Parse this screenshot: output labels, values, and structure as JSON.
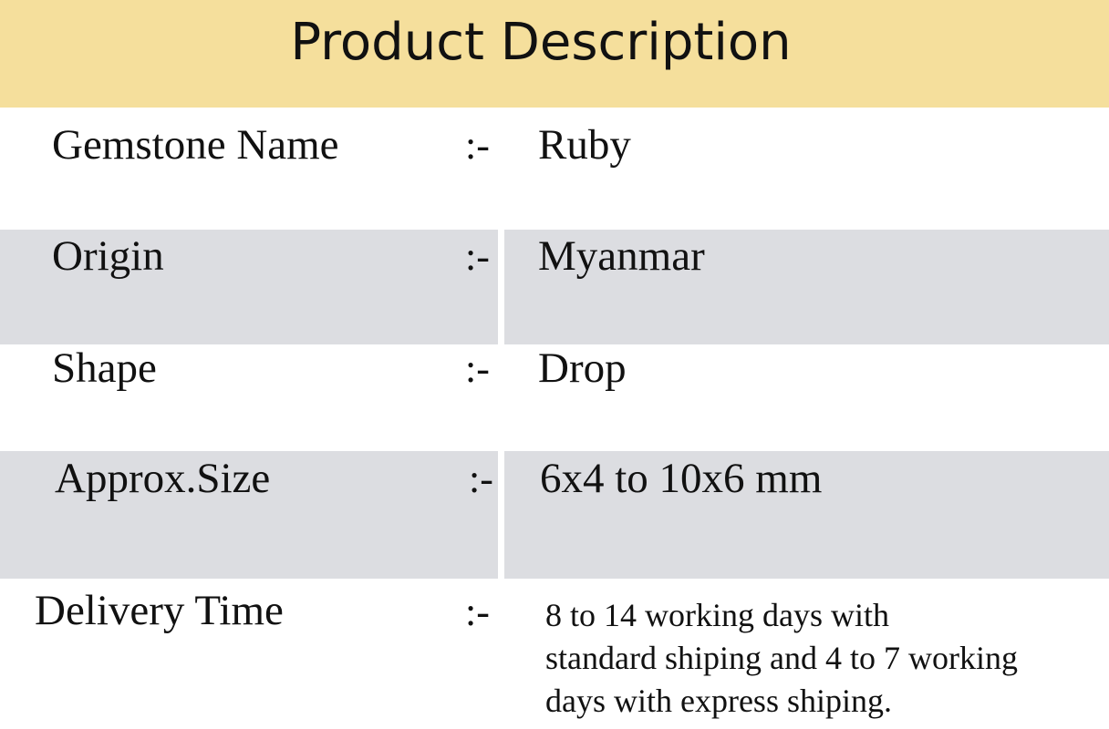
{
  "title": "Product Description",
  "separator": ":-",
  "rows": [
    {
      "label": "Gemstone Name",
      "value": "Ruby"
    },
    {
      "label": "Origin",
      "value": "Myanmar"
    },
    {
      "label": "Shape",
      "value": "Drop"
    },
    {
      "label": "Approx.Size",
      "value": "6x4 to 10x6 mm"
    },
    {
      "label": "Delivery Time",
      "value": " 8 to 14 working days with\nstandard shiping and 4 to 7 working\ndays  with express shiping."
    }
  ],
  "colors": {
    "header": "#f5df9c",
    "band": "#dcdde1"
  }
}
